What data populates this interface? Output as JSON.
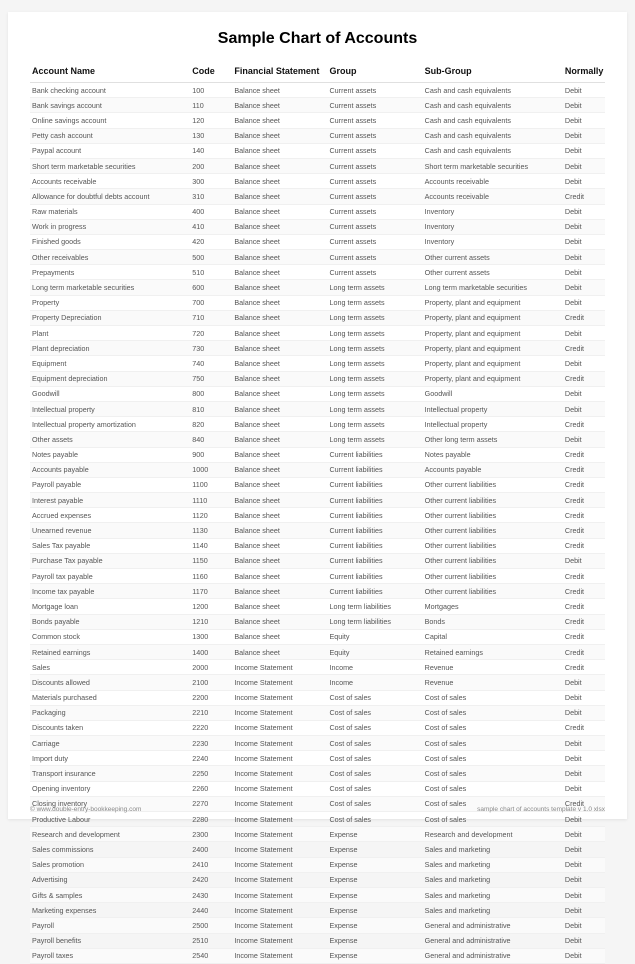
{
  "title": "Sample Chart of Accounts",
  "columns": {
    "name": "Account Name",
    "code": "Code",
    "fs": "Financial Statement",
    "group": "Group",
    "sub": "Sub-Group",
    "norm": "Normally"
  },
  "rows": [
    {
      "name": "Bank checking account",
      "code": "100",
      "fs": "Balance sheet",
      "group": "Current assets",
      "sub": "Cash and cash equivalents",
      "norm": "Debit"
    },
    {
      "name": "Bank savings account",
      "code": "110",
      "fs": "Balance sheet",
      "group": "Current assets",
      "sub": "Cash and cash equivalents",
      "norm": "Debit"
    },
    {
      "name": "Online savings account",
      "code": "120",
      "fs": "Balance sheet",
      "group": "Current assets",
      "sub": "Cash and cash equivalents",
      "norm": "Debit"
    },
    {
      "name": "Petty cash account",
      "code": "130",
      "fs": "Balance sheet",
      "group": "Current assets",
      "sub": "Cash and cash equivalents",
      "norm": "Debit"
    },
    {
      "name": "Paypal account",
      "code": "140",
      "fs": "Balance sheet",
      "group": "Current assets",
      "sub": "Cash and cash equivalents",
      "norm": "Debit"
    },
    {
      "name": "Short term marketable securities",
      "code": "200",
      "fs": "Balance sheet",
      "group": "Current assets",
      "sub": "Short term marketable securities",
      "norm": "Debit"
    },
    {
      "name": "Accounts receivable",
      "code": "300",
      "fs": "Balance sheet",
      "group": "Current assets",
      "sub": "Accounts receivable",
      "norm": "Debit"
    },
    {
      "name": "Allowance for doubtful debts account",
      "code": "310",
      "fs": "Balance sheet",
      "group": "Current assets",
      "sub": "Accounts receivable",
      "norm": "Credit"
    },
    {
      "name": "Raw materials",
      "code": "400",
      "fs": "Balance sheet",
      "group": "Current assets",
      "sub": "Inventory",
      "norm": "Debit"
    },
    {
      "name": "Work in progress",
      "code": "410",
      "fs": "Balance sheet",
      "group": "Current assets",
      "sub": "Inventory",
      "norm": "Debit"
    },
    {
      "name": "Finished goods",
      "code": "420",
      "fs": "Balance sheet",
      "group": "Current assets",
      "sub": "Inventory",
      "norm": "Debit"
    },
    {
      "name": "Other receivables",
      "code": "500",
      "fs": "Balance sheet",
      "group": "Current assets",
      "sub": "Other current assets",
      "norm": "Debit"
    },
    {
      "name": "Prepayments",
      "code": "510",
      "fs": "Balance sheet",
      "group": "Current assets",
      "sub": "Other current assets",
      "norm": "Debit"
    },
    {
      "name": "Long term marketable securities",
      "code": "600",
      "fs": "Balance sheet",
      "group": "Long term assets",
      "sub": "Long term marketable securities",
      "norm": "Debit"
    },
    {
      "name": "Property",
      "code": "700",
      "fs": "Balance sheet",
      "group": "Long term assets",
      "sub": "Property, plant and equipment",
      "norm": "Debit"
    },
    {
      "name": "Property Depreciation",
      "code": "710",
      "fs": "Balance sheet",
      "group": "Long term assets",
      "sub": "Property, plant and equipment",
      "norm": "Credit"
    },
    {
      "name": "Plant",
      "code": "720",
      "fs": "Balance sheet",
      "group": "Long term assets",
      "sub": "Property, plant and equipment",
      "norm": "Debit"
    },
    {
      "name": "Plant depreciation",
      "code": "730",
      "fs": "Balance sheet",
      "group": "Long term assets",
      "sub": "Property, plant and equipment",
      "norm": "Credit"
    },
    {
      "name": "Equipment",
      "code": "740",
      "fs": "Balance sheet",
      "group": "Long term assets",
      "sub": "Property, plant and equipment",
      "norm": "Debit"
    },
    {
      "name": "Equipment depreciation",
      "code": "750",
      "fs": "Balance sheet",
      "group": "Long term assets",
      "sub": "Property, plant and equipment",
      "norm": "Credit"
    },
    {
      "name": "Goodwill",
      "code": "800",
      "fs": "Balance sheet",
      "group": "Long term assets",
      "sub": "Goodwill",
      "norm": "Debit"
    },
    {
      "name": "Intellectual property",
      "code": "810",
      "fs": "Balance sheet",
      "group": "Long term assets",
      "sub": "Intellectual property",
      "norm": "Debit"
    },
    {
      "name": "Intellectual property amortization",
      "code": "820",
      "fs": "Balance sheet",
      "group": "Long term assets",
      "sub": "Intellectual property",
      "norm": "Credit"
    },
    {
      "name": "Other assets",
      "code": "840",
      "fs": "Balance sheet",
      "group": "Long term assets",
      "sub": "Other long term assets",
      "norm": "Debit"
    },
    {
      "name": "Notes payable",
      "code": "900",
      "fs": "Balance sheet",
      "group": "Current liabilities",
      "sub": "Notes payable",
      "norm": "Credit"
    },
    {
      "name": "Accounts payable",
      "code": "1000",
      "fs": "Balance sheet",
      "group": "Current liabilities",
      "sub": "Accounts payable",
      "norm": "Credit"
    },
    {
      "name": "Payroll payable",
      "code": "1100",
      "fs": "Balance sheet",
      "group": "Current liabilities",
      "sub": "Other current liabilities",
      "norm": "Credit"
    },
    {
      "name": "Interest payable",
      "code": "1110",
      "fs": "Balance sheet",
      "group": "Current liabilities",
      "sub": "Other current liabilities",
      "norm": "Credit"
    },
    {
      "name": "Accrued expenses",
      "code": "1120",
      "fs": "Balance sheet",
      "group": "Current liabilities",
      "sub": "Other current liabilities",
      "norm": "Credit"
    },
    {
      "name": "Unearned revenue",
      "code": "1130",
      "fs": "Balance sheet",
      "group": "Current liabilities",
      "sub": "Other current liabilities",
      "norm": "Credit"
    },
    {
      "name": "Sales Tax payable",
      "code": "1140",
      "fs": "Balance sheet",
      "group": "Current liabilities",
      "sub": "Other current liabilities",
      "norm": "Credit"
    },
    {
      "name": "Purchase Tax payable",
      "code": "1150",
      "fs": "Balance sheet",
      "group": "Current liabilities",
      "sub": "Other current liabilities",
      "norm": "Debit"
    },
    {
      "name": "Payroll tax payable",
      "code": "1160",
      "fs": "Balance sheet",
      "group": "Current liabilities",
      "sub": "Other current liabilities",
      "norm": "Credit"
    },
    {
      "name": "Income tax payable",
      "code": "1170",
      "fs": "Balance sheet",
      "group": "Current liabilities",
      "sub": "Other current liabilities",
      "norm": "Credit"
    },
    {
      "name": "Mortgage loan",
      "code": "1200",
      "fs": "Balance sheet",
      "group": "Long term liabilities",
      "sub": "Mortgages",
      "norm": "Credit"
    },
    {
      "name": "Bonds payable",
      "code": "1210",
      "fs": "Balance sheet",
      "group": "Long term liabilities",
      "sub": "Bonds",
      "norm": "Credit"
    },
    {
      "name": "Common stock",
      "code": "1300",
      "fs": "Balance sheet",
      "group": "Equity",
      "sub": "Capital",
      "norm": "Credit"
    },
    {
      "name": "Retained earnings",
      "code": "1400",
      "fs": "Balance sheet",
      "group": "Equity",
      "sub": "Retained earnings",
      "norm": "Credit"
    },
    {
      "name": "Sales",
      "code": "2000",
      "fs": "Income Statement",
      "group": "Income",
      "sub": "Revenue",
      "norm": "Credit"
    },
    {
      "name": "Discounts allowed",
      "code": "2100",
      "fs": "Income Statement",
      "group": "Income",
      "sub": "Revenue",
      "norm": "Debit"
    },
    {
      "name": "Materials purchased",
      "code": "2200",
      "fs": "Income Statement",
      "group": "Cost of sales",
      "sub": "Cost of sales",
      "norm": "Debit"
    },
    {
      "name": "Packaging",
      "code": "2210",
      "fs": "Income Statement",
      "group": "Cost of sales",
      "sub": "Cost of sales",
      "norm": "Debit"
    },
    {
      "name": "Discounts taken",
      "code": "2220",
      "fs": "Income Statement",
      "group": "Cost of sales",
      "sub": "Cost of sales",
      "norm": "Credit"
    },
    {
      "name": "Carriage",
      "code": "2230",
      "fs": "Income Statement",
      "group": "Cost of sales",
      "sub": "Cost of sales",
      "norm": "Debit"
    },
    {
      "name": "Import duty",
      "code": "2240",
      "fs": "Income Statement",
      "group": "Cost of sales",
      "sub": "Cost of sales",
      "norm": "Debit"
    },
    {
      "name": "Transport insurance",
      "code": "2250",
      "fs": "Income Statement",
      "group": "Cost of sales",
      "sub": "Cost of sales",
      "norm": "Debit"
    },
    {
      "name": "Opening inventory",
      "code": "2260",
      "fs": "Income Statement",
      "group": "Cost of sales",
      "sub": "Cost of sales",
      "norm": "Debit"
    },
    {
      "name": "Closing inventory",
      "code": "2270",
      "fs": "Income Statement",
      "group": "Cost of sales",
      "sub": "Cost of sales",
      "norm": "Credit"
    },
    {
      "name": "Productive Labour",
      "code": "2280",
      "fs": "Income Statement",
      "group": "Cost of sales",
      "sub": "Cost of sales",
      "norm": "Debit"
    },
    {
      "name": "Research and development",
      "code": "2300",
      "fs": "Income Statement",
      "group": "Expense",
      "sub": "Research and development",
      "norm": "Debit"
    },
    {
      "name": "Sales commissions",
      "code": "2400",
      "fs": "Income Statement",
      "group": "Expense",
      "sub": "Sales and marketing",
      "norm": "Debit"
    },
    {
      "name": "Sales promotion",
      "code": "2410",
      "fs": "Income Statement",
      "group": "Expense",
      "sub": "Sales and marketing",
      "norm": "Debit"
    },
    {
      "name": "Advertising",
      "code": "2420",
      "fs": "Income Statement",
      "group": "Expense",
      "sub": "Sales and marketing",
      "norm": "Debit"
    },
    {
      "name": "Gifts & samples",
      "code": "2430",
      "fs": "Income Statement",
      "group": "Expense",
      "sub": "Sales and marketing",
      "norm": "Debit"
    },
    {
      "name": "Marketing expenses",
      "code": "2440",
      "fs": "Income Statement",
      "group": "Expense",
      "sub": "Sales and marketing",
      "norm": "Debit"
    },
    {
      "name": "Payroll",
      "code": "2500",
      "fs": "Income Statement",
      "group": "Expense",
      "sub": "General and administrative",
      "norm": "Debit"
    },
    {
      "name": "Payroll benefits",
      "code": "2510",
      "fs": "Income Statement",
      "group": "Expense",
      "sub": "General and administrative",
      "norm": "Debit"
    },
    {
      "name": "Payroll taxes",
      "code": "2540",
      "fs": "Income Statement",
      "group": "Expense",
      "sub": "General and administrative",
      "norm": "Debit"
    }
  ],
  "footer": {
    "left": "© www.double-entry-bookkeeping.com",
    "right": "sample chart of accounts template v 1.0 xlsx"
  }
}
